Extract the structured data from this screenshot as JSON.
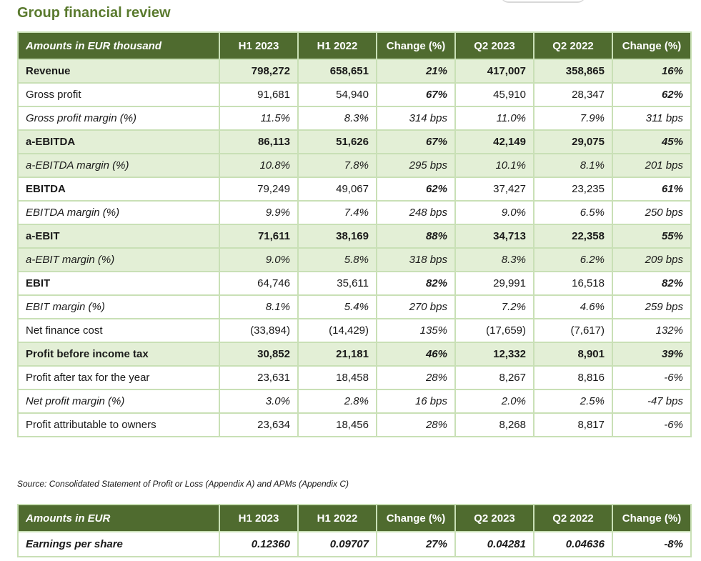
{
  "title": "Group financial review",
  "table1": {
    "headers": [
      "Amounts in EUR thousand",
      "H1 2023",
      "H1 2022",
      "Change (%)",
      "Q2 2023",
      "Q2 2022",
      "Change (%)"
    ],
    "rows": [
      {
        "label": "Revenue",
        "values": [
          "798,272",
          "658,651",
          "21%",
          "417,007",
          "358,865",
          "16%"
        ]
      },
      {
        "label": "Gross profit",
        "values": [
          "91,681",
          "54,940",
          "67%",
          "45,910",
          "28,347",
          "62%"
        ]
      },
      {
        "label": "Gross profit margin (%)",
        "values": [
          "11.5%",
          "8.3%",
          "314 bps",
          "11.0%",
          "7.9%",
          "311 bps"
        ]
      },
      {
        "label": "a-EBITDA",
        "values": [
          "86,113",
          "51,626",
          "67%",
          "42,149",
          "29,075",
          "45%"
        ]
      },
      {
        "label": "a-EBITDA margin (%)",
        "values": [
          "10.8%",
          "7.8%",
          "295 bps",
          "10.1%",
          "8.1%",
          "201 bps"
        ]
      },
      {
        "label": "EBITDA",
        "values": [
          "79,249",
          "49,067",
          "62%",
          "37,427",
          "23,235",
          "61%"
        ]
      },
      {
        "label": "EBITDA margin (%)",
        "values": [
          "9.9%",
          "7.4%",
          "248 bps",
          "9.0%",
          "6.5%",
          "250 bps"
        ]
      },
      {
        "label": "a-EBIT",
        "values": [
          "71,611",
          "38,169",
          "88%",
          "34,713",
          "22,358",
          "55%"
        ]
      },
      {
        "label": "a-EBIT margin (%)",
        "values": [
          "9.0%",
          "5.8%",
          "318 bps",
          "8.3%",
          "6.2%",
          "209 bps"
        ]
      },
      {
        "label": "EBIT",
        "values": [
          "64,746",
          "35,611",
          "82%",
          "29,991",
          "16,518",
          "82%"
        ]
      },
      {
        "label": "EBIT margin (%)",
        "values": [
          "8.1%",
          "5.4%",
          "270 bps",
          "7.2%",
          "4.6%",
          "259 bps"
        ]
      },
      {
        "label": "Net finance cost",
        "values": [
          "(33,894)",
          "(14,429)",
          "135%",
          "(17,659)",
          "(7,617)",
          "132%"
        ]
      },
      {
        "label": "Profit before income tax",
        "values": [
          "30,852",
          "21,181",
          "46%",
          "12,332",
          "8,901",
          "39%"
        ]
      },
      {
        "label": "Profit after tax for the year",
        "values": [
          "23,631",
          "18,458",
          "28%",
          "8,267",
          "8,816",
          "-6%"
        ]
      },
      {
        "label": "Net profit margin (%)",
        "values": [
          "3.0%",
          "2.8%",
          "16 bps",
          "2.0%",
          "2.5%",
          "-47 bps"
        ]
      },
      {
        "label": "Profit attributable to owners",
        "values": [
          "23,634",
          "18,456",
          "28%",
          "8,268",
          "8,817",
          "-6%"
        ]
      }
    ]
  },
  "source_note": "Source: Consolidated Statement of Profit or Loss (Appendix A) and APMs (Appendix C)",
  "table2": {
    "headers": [
      "Amounts in EUR",
      "H1 2023",
      "H1 2022",
      "Change (%)",
      "Q2 2023",
      "Q2 2022",
      "Change (%)"
    ],
    "rows": [
      {
        "label": "Earnings per share",
        "values": [
          "0.12360",
          "0.09707",
          "27%",
          "0.04281",
          "0.04636",
          "-8%"
        ]
      }
    ]
  }
}
